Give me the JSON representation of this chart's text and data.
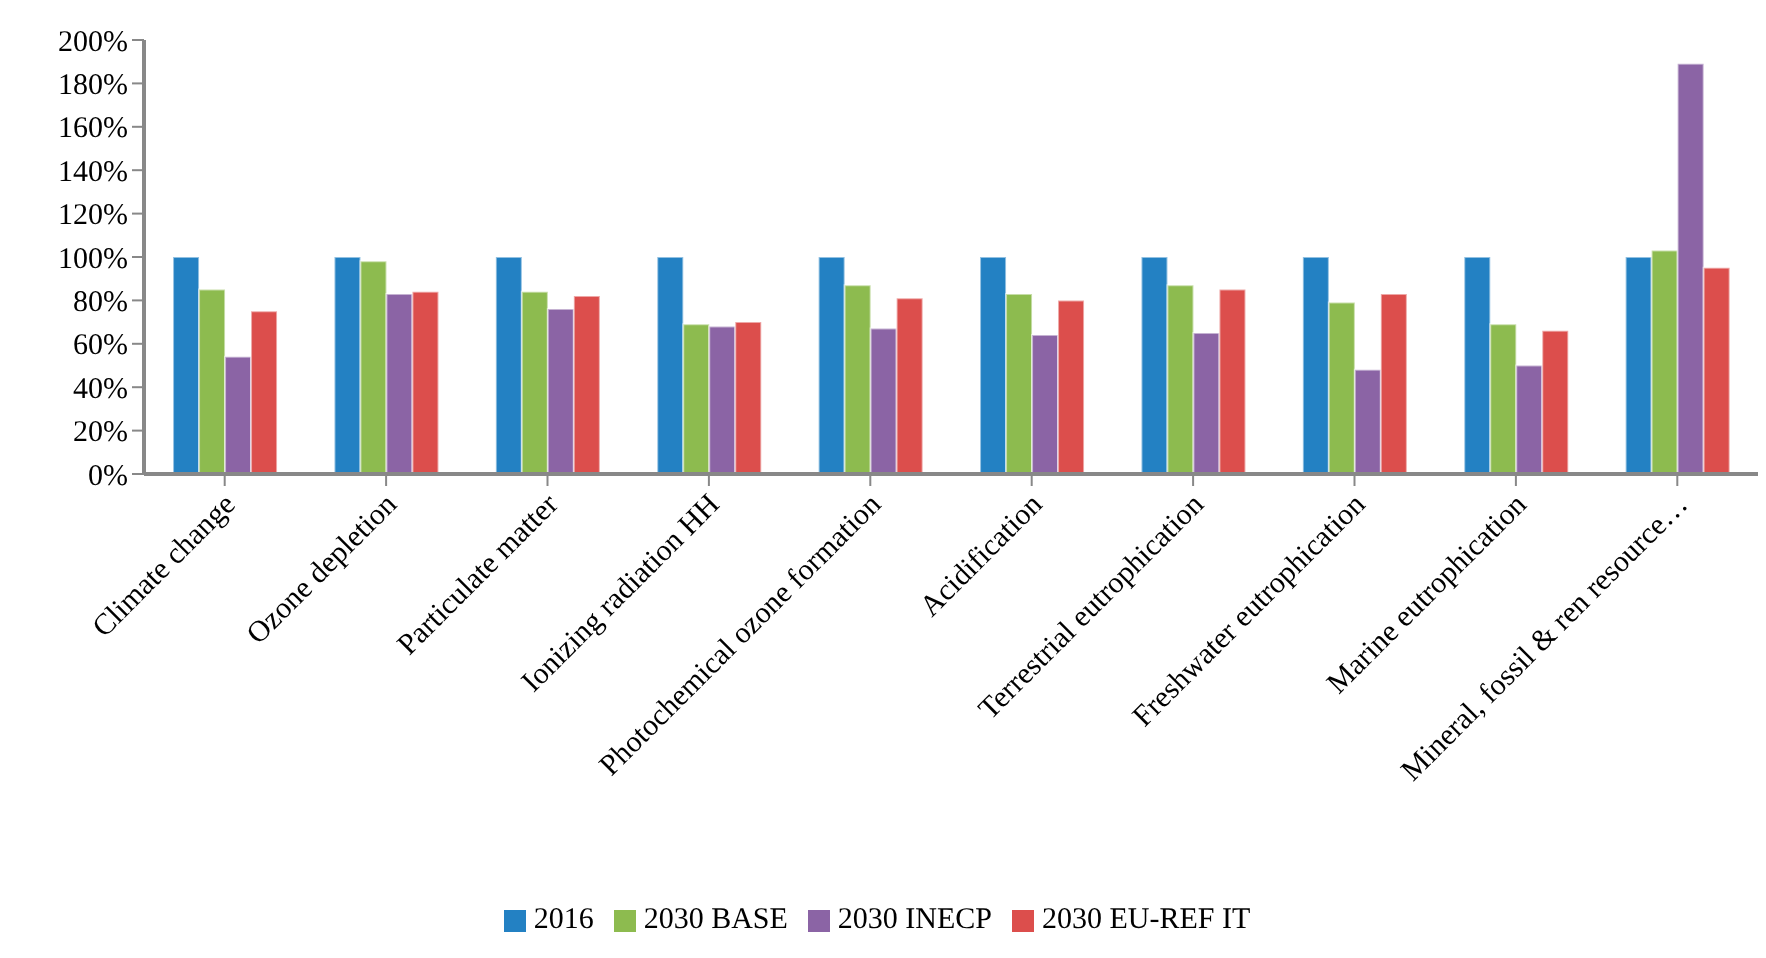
{
  "chart_data": {
    "type": "bar",
    "categories": [
      "Climate change",
      "Ozone depletion",
      "Particulate matter",
      "Ionizing radiation HH",
      "Photochemical ozone formation",
      "Acidification",
      "Terrestrial eutrophication",
      "Freshwater eutrophication",
      "Marine eutrophication",
      "Mineral, fossil & ren resource…"
    ],
    "series": [
      {
        "name": "2016",
        "color": "#2381c3",
        "values": [
          100,
          100,
          100,
          100,
          100,
          100,
          100,
          100,
          100,
          100
        ]
      },
      {
        "name": "2030 BASE",
        "color": "#8dbb4f",
        "values": [
          85,
          98,
          84,
          69,
          87,
          83,
          87,
          79,
          69,
          103
        ]
      },
      {
        "name": "2030 INECP",
        "color": "#8b64a5",
        "values": [
          54,
          83,
          76,
          68,
          67,
          64,
          65,
          48,
          50,
          189
        ]
      },
      {
        "name": "2030 EU-REF IT",
        "color": "#dc4e4c",
        "values": [
          75,
          84,
          82,
          70,
          81,
          80,
          85,
          83,
          66,
          95
        ]
      }
    ],
    "ylim": [
      0,
      200
    ],
    "yticks": [
      {
        "value": 0,
        "label": "0%"
      },
      {
        "value": 20,
        "label": "20%"
      },
      {
        "value": 40,
        "label": "40%"
      },
      {
        "value": 60,
        "label": "60%"
      },
      {
        "value": 80,
        "label": "80%"
      },
      {
        "value": 100,
        "label": "100%"
      },
      {
        "value": 120,
        "label": "120%"
      },
      {
        "value": 140,
        "label": "140%"
      },
      {
        "value": 160,
        "label": "160%"
      },
      {
        "value": 180,
        "label": "180%"
      },
      {
        "value": 200,
        "label": "200%"
      }
    ],
    "grid": false,
    "legend": "bottom"
  }
}
